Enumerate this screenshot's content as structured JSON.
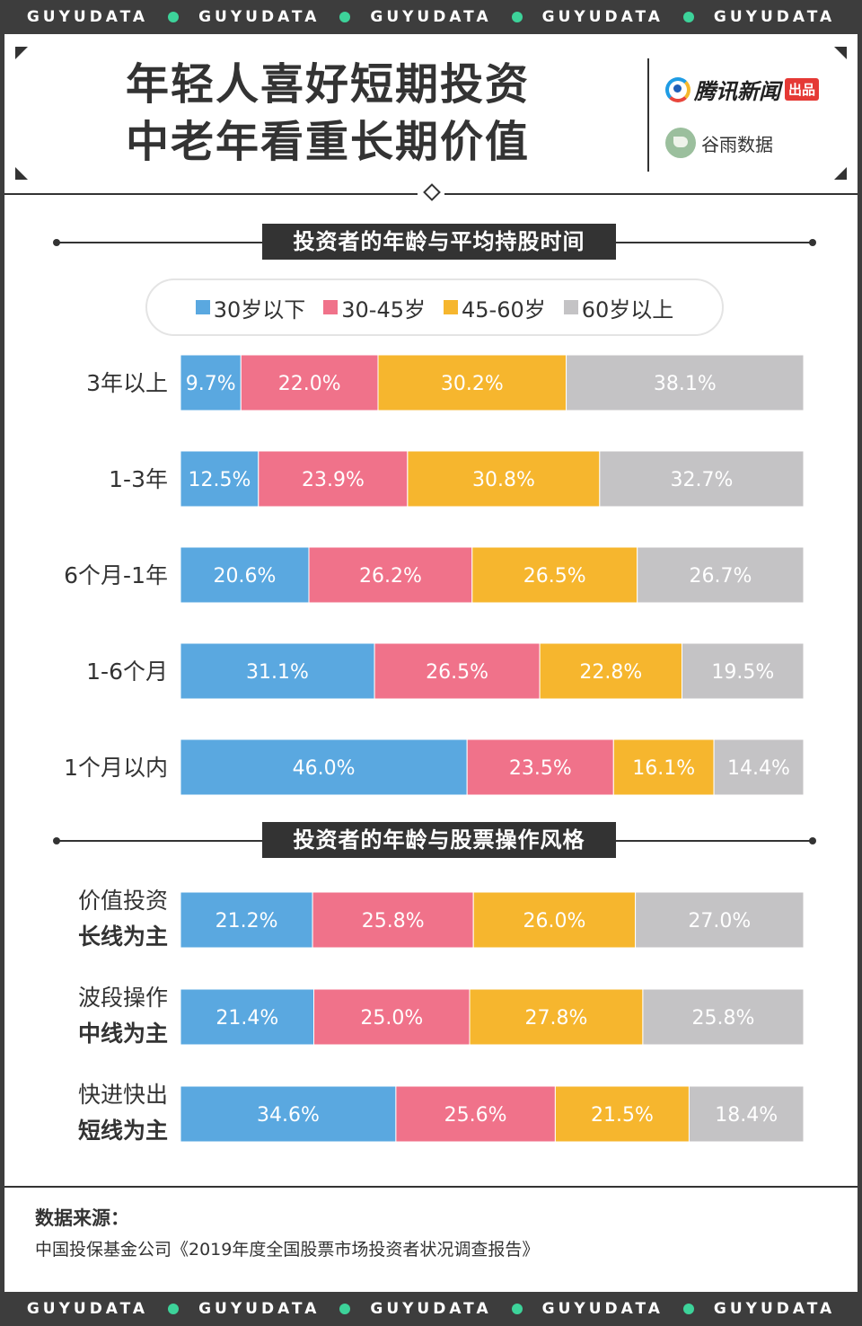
{
  "band_text": "GUYUDATA",
  "title": {
    "line1": "年轻人喜好短期投资",
    "line2": "中老年看重长期价值"
  },
  "logos": {
    "tencent": "腾讯新闻",
    "tencent_badge": "出品",
    "guyu": "谷雨数据"
  },
  "colors": {
    "under30": "#5aa8e0",
    "30_45": "#f0728a",
    "45_60": "#f6b62e",
    "over60": "#c4c3c5",
    "dark": "#333333"
  },
  "legend": [
    "30岁以下",
    "30-45岁",
    "45-60岁",
    "60岁以上"
  ],
  "source": {
    "label": "数据来源：",
    "text": "中国投保基金公司《2019年度全国股票市场投资者状况调查报告》"
  },
  "chart_data": [
    {
      "type": "bar",
      "title": "投资者的年龄与平均持股时间",
      "stacked": true,
      "orientation": "horizontal",
      "categories": [
        "3年以上",
        "1-3年",
        "6个月-1年",
        "1-6个月",
        "1个月以内"
      ],
      "series": [
        {
          "name": "30岁以下",
          "values": [
            9.7,
            12.5,
            20.6,
            31.1,
            46.0
          ]
        },
        {
          "name": "30-45岁",
          "values": [
            22.0,
            23.9,
            26.2,
            26.5,
            23.5
          ]
        },
        {
          "name": "45-60岁",
          "values": [
            30.2,
            30.8,
            26.5,
            22.8,
            16.1
          ]
        },
        {
          "name": "60岁以上",
          "values": [
            38.1,
            32.7,
            26.7,
            19.5,
            14.4
          ]
        }
      ],
      "unit": "%"
    },
    {
      "type": "bar",
      "title": "投资者的年龄与股票操作风格",
      "stacked": true,
      "orientation": "horizontal",
      "categories": [
        [
          "价值投资",
          "长线为主"
        ],
        [
          "波段操作",
          "中线为主"
        ],
        [
          "快进快出",
          "短线为主"
        ]
      ],
      "series": [
        {
          "name": "30岁以下",
          "values": [
            21.2,
            21.4,
            34.6
          ]
        },
        {
          "name": "30-45岁",
          "values": [
            25.8,
            25.0,
            25.6
          ]
        },
        {
          "name": "45-60岁",
          "values": [
            26.0,
            27.8,
            21.5
          ]
        },
        {
          "name": "60岁以上",
          "values": [
            27.0,
            25.8,
            18.4
          ]
        }
      ],
      "unit": "%"
    }
  ]
}
